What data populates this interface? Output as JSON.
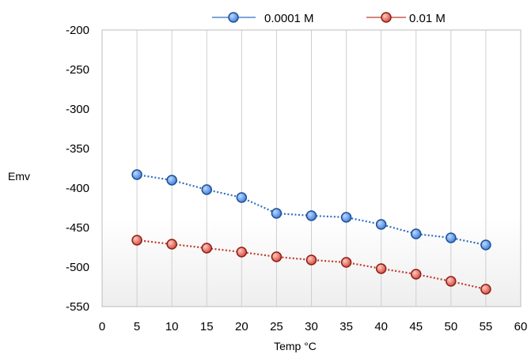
{
  "chart_data": {
    "type": "line",
    "title": "",
    "xlabel": "Temp °C",
    "ylabel": "Emv",
    "xlim": [
      0,
      60
    ],
    "ylim": [
      -550,
      -200
    ],
    "x_ticks": [
      0,
      5,
      10,
      15,
      20,
      25,
      30,
      35,
      40,
      45,
      50,
      55,
      60
    ],
    "y_ticks": [
      -200,
      -250,
      -300,
      -350,
      -400,
      -450,
      -500,
      -550
    ],
    "grid": "vertical",
    "legend_position": "top",
    "x": [
      5,
      10,
      15,
      20,
      25,
      30,
      35,
      40,
      45,
      50,
      55
    ],
    "series": [
      {
        "name": "0.0001 M",
        "color": "#2f6fc2",
        "marker_fill": "#5f9be6",
        "values": [
          -383,
          -390,
          -402,
          -412,
          -432,
          -435,
          -437,
          -446,
          -458,
          -463,
          -472
        ]
      },
      {
        "name": "0.01 M",
        "color": "#c0392b",
        "marker_fill": "#e06a5e",
        "values": [
          -466,
          -471,
          -476,
          -481,
          -487,
          -491,
          -494,
          -502,
          -509,
          -518,
          -528
        ]
      }
    ]
  }
}
